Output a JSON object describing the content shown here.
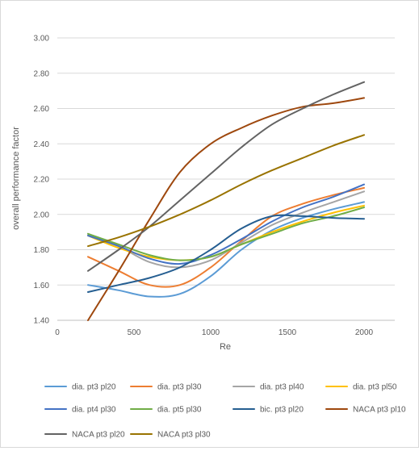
{
  "chart_data": {
    "type": "line",
    "title": "",
    "xlabel": "Re",
    "ylabel": "overall performance factor",
    "xlim": [
      0,
      2200
    ],
    "ylim": [
      1.4,
      3.0
    ],
    "xticks": [
      0,
      500,
      1000,
      1500,
      2000
    ],
    "xtick_labels": [
      "0",
      "500",
      "1000",
      "1500",
      "2000"
    ],
    "yticks": [
      1.4,
      1.6,
      1.8,
      2.0,
      2.2,
      2.4,
      2.6,
      2.8,
      3.0
    ],
    "ytick_labels": [
      "1.40",
      "1.60",
      "1.80",
      "2.00",
      "2.20",
      "2.40",
      "2.60",
      "2.80",
      "3.00"
    ],
    "grid": "horizontal",
    "legend_position": "bottom",
    "series": [
      {
        "name": "dia. pt3 pl20",
        "color": "#5b9bd5",
        "x": [
          200,
          400,
          600,
          800,
          1000,
          1200,
          1400,
          1600,
          1800,
          2000
        ],
        "values": [
          1.6,
          1.57,
          1.535,
          1.55,
          1.65,
          1.8,
          1.91,
          1.98,
          2.03,
          2.07
        ]
      },
      {
        "name": "dia. pt3 pl30",
        "color": "#ed7d31",
        "x": [
          200,
          400,
          600,
          800,
          1000,
          1200,
          1400,
          1600,
          1800,
          2000
        ],
        "values": [
          1.76,
          1.68,
          1.6,
          1.6,
          1.7,
          1.85,
          1.99,
          2.06,
          2.11,
          2.15
        ]
      },
      {
        "name": "dia. pt3 pl40",
        "color": "#a5a5a5",
        "x": [
          200,
          400,
          600,
          800,
          1000,
          1200,
          1400,
          1600,
          1800,
          2000
        ],
        "values": [
          1.89,
          1.82,
          1.73,
          1.7,
          1.74,
          1.84,
          1.94,
          2.01,
          2.07,
          2.13
        ]
      },
      {
        "name": "dia. pt3 pl50",
        "color": "#ffc000",
        "x": [
          200,
          400,
          600,
          800,
          1000,
          1200,
          1400,
          1600,
          1800,
          2000
        ],
        "values": [
          1.88,
          1.81,
          1.76,
          1.74,
          1.76,
          1.83,
          1.9,
          1.96,
          2.01,
          2.05
        ]
      },
      {
        "name": "dia. pt4 pl30",
        "color": "#4472c4",
        "x": [
          200,
          400,
          600,
          800,
          1000,
          1200,
          1400,
          1600,
          1800,
          2000
        ],
        "values": [
          1.88,
          1.82,
          1.75,
          1.72,
          1.77,
          1.86,
          1.96,
          2.04,
          2.1,
          2.17
        ]
      },
      {
        "name": "dia. pt5 pl30",
        "color": "#70ad47",
        "x": [
          200,
          400,
          600,
          800,
          1000,
          1200,
          1400,
          1600,
          1800,
          2000
        ],
        "values": [
          1.89,
          1.83,
          1.77,
          1.74,
          1.76,
          1.83,
          1.89,
          1.95,
          1.99,
          2.04
        ]
      },
      {
        "name": "bic. pt3 pl20",
        "color": "#255e91",
        "x": [
          200,
          400,
          600,
          800,
          1000,
          1200,
          1400,
          1600,
          1800,
          2000
        ],
        "values": [
          1.56,
          1.6,
          1.64,
          1.7,
          1.8,
          1.92,
          1.99,
          1.99,
          1.98,
          1.975
        ]
      },
      {
        "name": "NACA pt3 pl10",
        "color": "#9e480e",
        "x": [
          200,
          400,
          600,
          800,
          1000,
          1200,
          1400,
          1600,
          1800,
          2000
        ],
        "values": [
          1.4,
          1.68,
          1.97,
          2.24,
          2.4,
          2.49,
          2.56,
          2.61,
          2.63,
          2.66
        ]
      },
      {
        "name": "NACA pt3 pl20",
        "color": "#636363",
        "x": [
          200,
          400,
          600,
          800,
          1000,
          1200,
          1400,
          1600,
          1800,
          2000
        ],
        "values": [
          1.68,
          1.8,
          1.93,
          2.08,
          2.23,
          2.38,
          2.51,
          2.6,
          2.68,
          2.75
        ]
      },
      {
        "name": "NACA pt3 pl30",
        "color": "#997300",
        "x": [
          200,
          400,
          600,
          800,
          1000,
          1200,
          1400,
          1600,
          1800,
          2000
        ],
        "values": [
          1.82,
          1.87,
          1.93,
          2.0,
          2.08,
          2.17,
          2.25,
          2.32,
          2.39,
          2.45
        ]
      }
    ]
  }
}
